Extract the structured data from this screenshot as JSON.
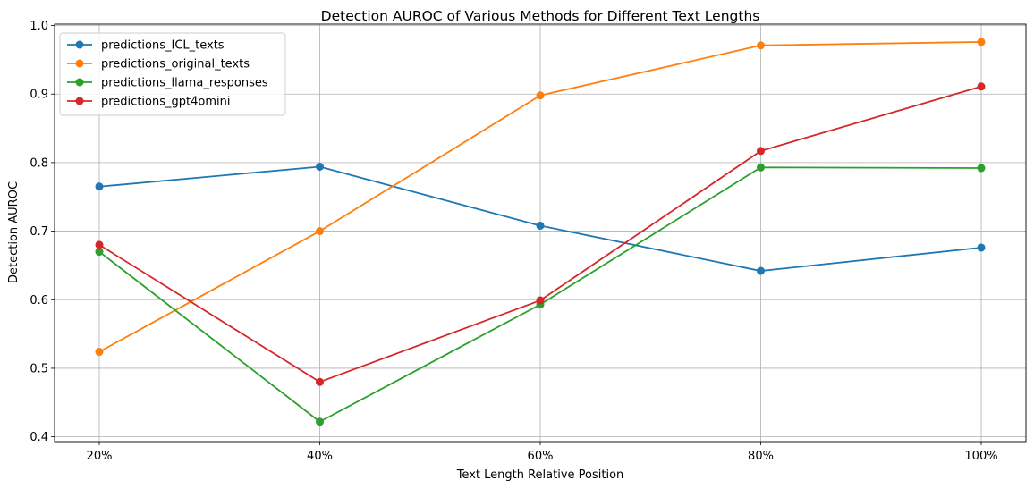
{
  "chart_data": {
    "type": "line",
    "title": "Detection AUROC of Various Methods for Different Text Lengths",
    "xlabel": "Text Length Relative Position",
    "ylabel": "Detection AUROC",
    "categories": [
      "20%",
      "40%",
      "60%",
      "80%",
      "100%"
    ],
    "ylim": [
      0.393,
      1.002
    ],
    "yticks": [
      "0.4",
      "0.5",
      "0.6",
      "0.7",
      "0.8",
      "0.9",
      "1.0"
    ],
    "grid": true,
    "legend_position": "top-left",
    "marker": "circle",
    "series": [
      {
        "name": "predictions_ICL_texts",
        "color": "#1f77b4",
        "values": [
          0.765,
          0.794,
          0.708,
          0.642,
          0.676
        ]
      },
      {
        "name": "predictions_original_texts",
        "color": "#ff7f0e",
        "values": [
          0.524,
          0.7,
          0.898,
          0.971,
          0.976
        ]
      },
      {
        "name": "predictions_llama_responses",
        "color": "#2ca02c",
        "values": [
          0.67,
          0.422,
          0.593,
          0.793,
          0.792
        ]
      },
      {
        "name": "predictions_gpt4omini",
        "color": "#d62728",
        "values": [
          0.68,
          0.48,
          0.599,
          0.817,
          0.911
        ]
      }
    ]
  }
}
